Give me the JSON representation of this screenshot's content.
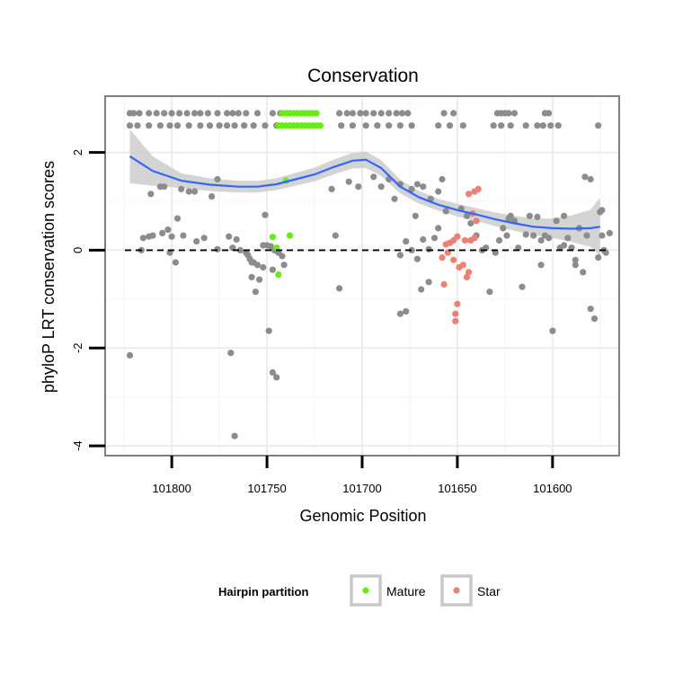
{
  "chart_data": {
    "type": "scatter",
    "title": "Conservation",
    "xlabel": "Genomic Position",
    "ylabel": "phyloP LRT conservation scores",
    "x_reversed": true,
    "xlim": [
      101835,
      101565
    ],
    "ylim": [
      -4.2,
      3.15
    ],
    "x_ticks": [
      101800,
      101750,
      101700,
      101650,
      101600
    ],
    "y_ticks": [
      -4,
      -2,
      0,
      2
    ],
    "grid": true,
    "reference_line": {
      "y": 0,
      "style": "dashed"
    },
    "legend": {
      "title": "Hairpin partition",
      "placement": "bottom",
      "entries": [
        {
          "label": "Mature",
          "color": "#66ee11"
        },
        {
          "label": "Star",
          "color": "#f07f72"
        }
      ]
    },
    "colors": {
      "other": "#8c8c8c",
      "mature": "#66ee11",
      "star": "#f07f72",
      "smooth": "#3366ff",
      "band": "#cccccc"
    },
    "series": [
      {
        "group": "other",
        "points": [
          [
            101822,
            2.8
          ],
          [
            101820,
            2.8
          ],
          [
            101817,
            2.8
          ],
          [
            101812,
            2.8
          ],
          [
            101808,
            2.8
          ],
          [
            101804,
            2.8
          ],
          [
            101800,
            2.8
          ],
          [
            101796,
            2.8
          ],
          [
            101792,
            2.8
          ],
          [
            101788,
            2.8
          ],
          [
            101785,
            2.8
          ],
          [
            101781,
            2.8
          ],
          [
            101776,
            2.8
          ],
          [
            101771,
            2.8
          ],
          [
            101768,
            2.8
          ],
          [
            101765,
            2.8
          ],
          [
            101761,
            2.8
          ],
          [
            101755,
            2.8
          ],
          [
            101747,
            2.8
          ],
          [
            101743,
            2.8
          ],
          [
            101712,
            2.8
          ],
          [
            101708,
            2.8
          ],
          [
            101705,
            2.8
          ],
          [
            101701,
            2.8
          ],
          [
            101698,
            2.8
          ],
          [
            101694,
            2.8
          ],
          [
            101690,
            2.8
          ],
          [
            101686,
            2.8
          ],
          [
            101682,
            2.8
          ],
          [
            101679,
            2.8
          ],
          [
            101676,
            2.8
          ],
          [
            101657,
            2.8
          ],
          [
            101652,
            2.8
          ],
          [
            101629,
            2.8
          ],
          [
            101627,
            2.8
          ],
          [
            101625,
            2.8
          ],
          [
            101623,
            2.8
          ],
          [
            101620,
            2.8
          ],
          [
            101604,
            2.8
          ],
          [
            101602,
            2.8
          ],
          [
            101822,
            2.55
          ],
          [
            101818,
            2.55
          ],
          [
            101812,
            2.55
          ],
          [
            101806,
            2.55
          ],
          [
            101801,
            2.55
          ],
          [
            101797,
            2.55
          ],
          [
            101791,
            2.55
          ],
          [
            101785,
            2.55
          ],
          [
            101780,
            2.55
          ],
          [
            101775,
            2.55
          ],
          [
            101771,
            2.55
          ],
          [
            101767,
            2.55
          ],
          [
            101762,
            2.55
          ],
          [
            101757,
            2.55
          ],
          [
            101751,
            2.55
          ],
          [
            101745,
            2.55
          ],
          [
            101711,
            2.55
          ],
          [
            101705,
            2.55
          ],
          [
            101698,
            2.55
          ],
          [
            101692,
            2.55
          ],
          [
            101686,
            2.55
          ],
          [
            101680,
            2.55
          ],
          [
            101674,
            2.55
          ],
          [
            101660,
            2.55
          ],
          [
            101654,
            2.55
          ],
          [
            101647,
            2.55
          ],
          [
            101631,
            2.55
          ],
          [
            101627,
            2.55
          ],
          [
            101622,
            2.55
          ],
          [
            101614,
            2.55
          ],
          [
            101608,
            2.55
          ],
          [
            101605,
            2.55
          ],
          [
            101601,
            2.55
          ],
          [
            101597,
            2.55
          ],
          [
            101576,
            2.55
          ],
          [
            101806,
            1.3
          ],
          [
            101804,
            1.3
          ],
          [
            101795,
            1.25
          ],
          [
            101791,
            1.2
          ],
          [
            101788,
            1.2
          ],
          [
            101779,
            1.1
          ],
          [
            101776,
            1.45
          ],
          [
            101811,
            1.15
          ],
          [
            101815,
            0.25
          ],
          [
            101812,
            0.28
          ],
          [
            101810,
            0.3
          ],
          [
            101805,
            0.35
          ],
          [
            101802,
            0.42
          ],
          [
            101800,
            0.28
          ],
          [
            101797,
            0.65
          ],
          [
            101794,
            0.3
          ],
          [
            101787,
            0.18
          ],
          [
            101783,
            0.25
          ],
          [
            101816,
            0.0
          ],
          [
            101801,
            -0.05
          ],
          [
            101798,
            -0.25
          ],
          [
            101776,
            0.02
          ],
          [
            101770,
            0.28
          ],
          [
            101768,
            0.05
          ],
          [
            101766,
            0.22
          ],
          [
            101764,
            0.0
          ],
          [
            101761,
            -0.05
          ],
          [
            101760,
            -0.1
          ],
          [
            101759,
            -0.18
          ],
          [
            101757,
            -0.25
          ],
          [
            101755,
            -0.3
          ],
          [
            101752,
            0.1
          ],
          [
            101750,
            0.1
          ],
          [
            101748,
            0.08
          ],
          [
            101746,
            0.0
          ],
          [
            101744,
            -0.05
          ],
          [
            101742,
            -0.12
          ],
          [
            101741,
            -0.3
          ],
          [
            101752,
            -0.35
          ],
          [
            101754,
            -0.6
          ],
          [
            101756,
            -0.85
          ],
          [
            101758,
            -0.55
          ],
          [
            101758,
            -0.25
          ],
          [
            101751,
            0.72
          ],
          [
            101747,
            -0.4
          ],
          [
            101749,
            -1.65
          ],
          [
            101769,
            -2.1
          ],
          [
            101767,
            -3.8
          ],
          [
            101822,
            -2.15
          ],
          [
            101747,
            -2.5
          ],
          [
            101745,
            -2.6
          ],
          [
            101714,
            0.3
          ],
          [
            101712,
            -0.78
          ],
          [
            101716,
            1.25
          ],
          [
            101707,
            1.4
          ],
          [
            101702,
            1.3
          ],
          [
            101694,
            1.5
          ],
          [
            101690,
            1.3
          ],
          [
            101686,
            1.45
          ],
          [
            101683,
            1.05
          ],
          [
            101680,
            1.35
          ],
          [
            101674,
            1.25
          ],
          [
            101671,
            1.35
          ],
          [
            101672,
            0.7
          ],
          [
            101668,
            1.3
          ],
          [
            101664,
            1.05
          ],
          [
            101660,
            1.2
          ],
          [
            101658,
            1.45
          ],
          [
            101677,
            0.18
          ],
          [
            101674,
            0.0
          ],
          [
            101671,
            -0.18
          ],
          [
            101668,
            0.22
          ],
          [
            101665,
            0.02
          ],
          [
            101662,
            0.25
          ],
          [
            101660,
            0.45
          ],
          [
            101680,
            -1.3
          ],
          [
            101677,
            -1.25
          ],
          [
            101680,
            -0.1
          ],
          [
            101669,
            -0.8
          ],
          [
            101665,
            -0.65
          ],
          [
            101656,
            0.8
          ],
          [
            101648,
            0.85
          ],
          [
            101645,
            0.7
          ],
          [
            101643,
            0.55
          ],
          [
            101640,
            0.3
          ],
          [
            101637,
            0.0
          ],
          [
            101635,
            0.05
          ],
          [
            101633,
            -0.85
          ],
          [
            101630,
            -0.05
          ],
          [
            101628,
            0.2
          ],
          [
            101626,
            0.45
          ],
          [
            101624,
            0.3
          ],
          [
            101622,
            0.7
          ],
          [
            101620,
            0.6
          ],
          [
            101618,
            0.05
          ],
          [
            101616,
            -0.75
          ],
          [
            101614,
            0.32
          ],
          [
            101612,
            0.7
          ],
          [
            101610,
            0.3
          ],
          [
            101608,
            0.68
          ],
          [
            101606,
            0.2
          ],
          [
            101604,
            0.3
          ],
          [
            101602,
            0.25
          ],
          [
            101600,
            -1.65
          ],
          [
            101598,
            0.6
          ],
          [
            101596,
            0.05
          ],
          [
            101594,
            0.7
          ],
          [
            101592,
            0.25
          ],
          [
            101590,
            0.05
          ],
          [
            101588,
            -0.3
          ],
          [
            101586,
            0.45
          ],
          [
            101584,
            -0.45
          ],
          [
            101582,
            0.3
          ],
          [
            101580,
            -1.2
          ],
          [
            101578,
            -1.4
          ],
          [
            101576,
            -0.15
          ],
          [
            101574,
            0.3
          ],
          [
            101572,
            -0.05
          ],
          [
            101570,
            0.35
          ],
          [
            101583,
            1.5
          ],
          [
            101580,
            1.45
          ],
          [
            101575,
            0.78
          ],
          [
            101574,
            0.82
          ],
          [
            101588,
            -0.2
          ],
          [
            101594,
            0.1
          ],
          [
            101606,
            -0.3
          ],
          [
            101623,
            0.65
          ],
          [
            101573,
            0.0
          ]
        ]
      },
      {
        "group": "mature",
        "name": "Mature",
        "points": [
          [
            101742,
            2.8
          ],
          [
            101740,
            2.8
          ],
          [
            101738,
            2.8
          ],
          [
            101736,
            2.8
          ],
          [
            101734,
            2.8
          ],
          [
            101732,
            2.8
          ],
          [
            101730,
            2.8
          ],
          [
            101728,
            2.8
          ],
          [
            101726,
            2.8
          ],
          [
            101724,
            2.8
          ],
          [
            101744,
            2.55
          ],
          [
            101742,
            2.55
          ],
          [
            101740,
            2.55
          ],
          [
            101738,
            2.55
          ],
          [
            101736,
            2.55
          ],
          [
            101734,
            2.55
          ],
          [
            101732,
            2.55
          ],
          [
            101730,
            2.55
          ],
          [
            101728,
            2.55
          ],
          [
            101726,
            2.55
          ],
          [
            101724,
            2.55
          ],
          [
            101722,
            2.55
          ],
          [
            101740,
            1.42
          ],
          [
            101747,
            0.27
          ],
          [
            101738,
            0.3
          ],
          [
            101745,
            0.05
          ],
          [
            101744,
            -0.5
          ]
        ]
      },
      {
        "group": "star",
        "name": "Star",
        "points": [
          [
            101644,
            1.15
          ],
          [
            101641,
            1.2
          ],
          [
            101639,
            1.25
          ],
          [
            101642,
            0.75
          ],
          [
            101640,
            0.6
          ],
          [
            101656,
            0.12
          ],
          [
            101654,
            0.15
          ],
          [
            101652,
            0.2
          ],
          [
            101650,
            0.28
          ],
          [
            101646,
            0.2
          ],
          [
            101643,
            0.2
          ],
          [
            101641,
            0.25
          ],
          [
            101655,
            -0.05
          ],
          [
            101658,
            -0.15
          ],
          [
            101652,
            -0.2
          ],
          [
            101649,
            -0.35
          ],
          [
            101647,
            -0.3
          ],
          [
            101644,
            -0.45
          ],
          [
            101657,
            -0.7
          ],
          [
            101645,
            -0.55
          ],
          [
            101650,
            -1.1
          ],
          [
            101651,
            -1.3
          ],
          [
            101651,
            -1.45
          ]
        ]
      }
    ],
    "smooth": {
      "x": [
        101822,
        101810,
        101795,
        101780,
        101765,
        101755,
        101745,
        101735,
        101725,
        101715,
        101705,
        101698,
        101690,
        101680,
        101670,
        101660,
        101650,
        101640,
        101630,
        101620,
        101610,
        101600,
        101590,
        101580,
        101575
      ],
      "y": [
        1.92,
        1.62,
        1.42,
        1.34,
        1.3,
        1.3,
        1.35,
        1.45,
        1.55,
        1.7,
        1.83,
        1.85,
        1.68,
        1.3,
        1.08,
        0.93,
        0.82,
        0.73,
        0.63,
        0.55,
        0.48,
        0.45,
        0.44,
        0.45,
        0.48
      ],
      "band": [
        0.55,
        0.3,
        0.15,
        0.13,
        0.12,
        0.12,
        0.12,
        0.13,
        0.14,
        0.15,
        0.16,
        0.17,
        0.16,
        0.14,
        0.13,
        0.12,
        0.13,
        0.13,
        0.14,
        0.15,
        0.17,
        0.2,
        0.27,
        0.38,
        0.6
      ]
    }
  }
}
